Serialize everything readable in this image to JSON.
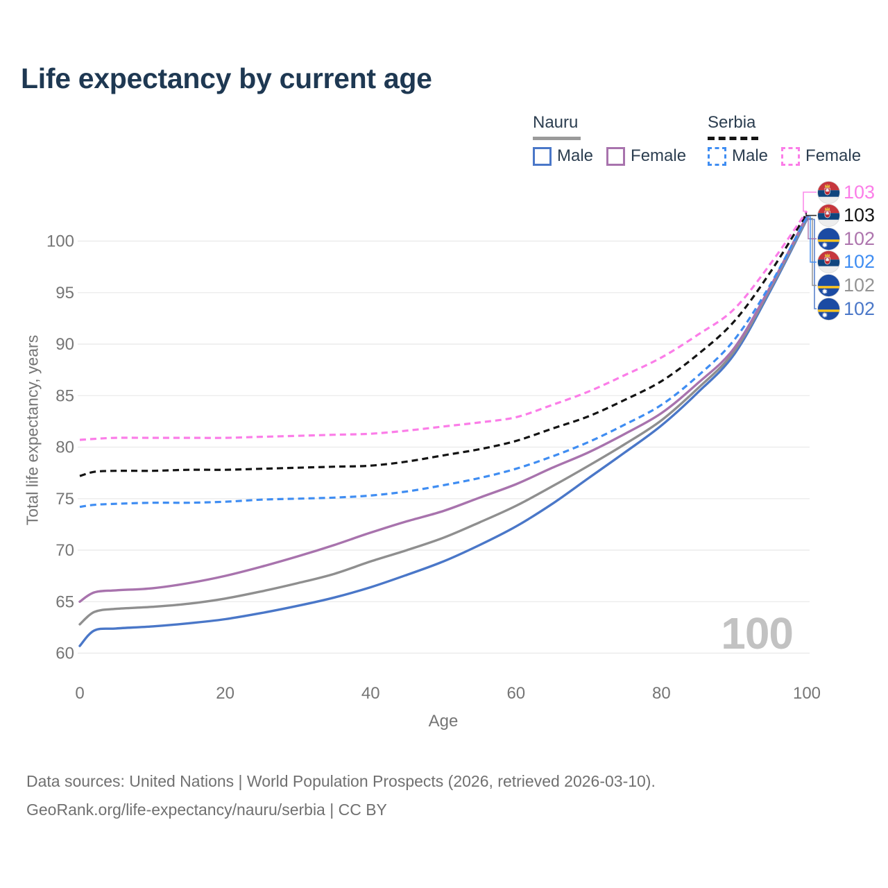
{
  "header": {
    "title": "Life expectancy by current age"
  },
  "legend": {
    "groups": [
      {
        "country": "Nauru",
        "line_style": "solid",
        "underline_color": "#9a9a9a",
        "items": [
          {
            "label": "Male",
            "color": "#4a77c8",
            "dashed": false
          },
          {
            "label": "Female",
            "color": "#a873ad",
            "dashed": false
          }
        ]
      },
      {
        "country": "Serbia",
        "line_style": "dashed",
        "underline_color": "#141414",
        "items": [
          {
            "label": "Male",
            "color": "#3f8df2",
            "dashed": true
          },
          {
            "label": "Female",
            "color": "#fb7de8",
            "dashed": true
          }
        ]
      }
    ]
  },
  "chart_data": {
    "type": "line",
    "title": "Life expectancy by current age",
    "xlabel": "Age",
    "ylabel": "Total life expectancy, years",
    "xlim": [
      0,
      100
    ],
    "ylim": [
      60,
      100
    ],
    "xticks": [
      0,
      20,
      40,
      60,
      80,
      100
    ],
    "yticks": [
      60,
      65,
      70,
      75,
      80,
      85,
      90,
      95,
      100
    ],
    "grid": "horizontal-only",
    "legend_position": "top-right",
    "age_indicator": "100",
    "x": [
      0,
      2,
      5,
      10,
      15,
      20,
      25,
      30,
      35,
      40,
      45,
      50,
      55,
      60,
      65,
      70,
      75,
      80,
      85,
      90,
      95,
      100
    ],
    "series": [
      {
        "name": "Nauru Male",
        "country": "Nauru",
        "sex": "male",
        "color": "#4a77c8",
        "dashed": false,
        "end_label_row": 5,
        "values": [
          60.7,
          62.2,
          62.4,
          62.6,
          62.9,
          63.3,
          63.9,
          64.6,
          65.4,
          66.4,
          67.6,
          68.9,
          70.5,
          72.3,
          74.5,
          77.0,
          79.5,
          82.1,
          85.3,
          89.0,
          95.2,
          102.1
        ]
      },
      {
        "name": "Nauru (both sexes)",
        "country": "Nauru",
        "sex": "both",
        "color": "#8f8f8f",
        "dashed": false,
        "end_label_row": 4,
        "values": [
          62.8,
          64.0,
          64.3,
          64.5,
          64.8,
          65.3,
          66.0,
          66.8,
          67.7,
          68.9,
          70.0,
          71.2,
          72.7,
          74.3,
          76.2,
          78.2,
          80.3,
          82.6,
          85.7,
          89.3,
          95.4,
          102.2
        ]
      },
      {
        "name": "Nauru Female",
        "country": "Nauru",
        "sex": "female",
        "color": "#a873ad",
        "dashed": false,
        "end_label_row": 2,
        "values": [
          65.0,
          65.9,
          66.1,
          66.3,
          66.8,
          67.5,
          68.4,
          69.4,
          70.5,
          71.7,
          72.8,
          73.8,
          75.1,
          76.4,
          78.0,
          79.5,
          81.3,
          83.3,
          86.2,
          89.6,
          95.6,
          102.45
        ]
      },
      {
        "name": "Serbia Male",
        "country": "Serbia",
        "sex": "male",
        "color": "#3f8df2",
        "dashed": true,
        "end_label_row": 3,
        "values": [
          74.2,
          74.4,
          74.5,
          74.6,
          74.6,
          74.7,
          74.9,
          75.0,
          75.1,
          75.3,
          75.7,
          76.3,
          77.0,
          77.9,
          79.1,
          80.5,
          82.2,
          84.1,
          86.9,
          90.4,
          95.8,
          102.35
        ]
      },
      {
        "name": "Serbia (both sexes)",
        "country": "Serbia",
        "sex": "both",
        "color": "#141414",
        "dashed": true,
        "end_label_row": 1,
        "values": [
          77.2,
          77.6,
          77.7,
          77.7,
          77.8,
          77.8,
          77.9,
          78.0,
          78.1,
          78.2,
          78.6,
          79.2,
          79.8,
          80.6,
          81.8,
          83.0,
          84.6,
          86.4,
          89.0,
          92.2,
          97.0,
          102.7
        ]
      },
      {
        "name": "Serbia Female",
        "country": "Serbia",
        "sex": "female",
        "color": "#fb7de8",
        "dashed": true,
        "end_label_row": 0,
        "values": [
          80.7,
          80.8,
          80.9,
          80.9,
          80.9,
          80.9,
          81.0,
          81.1,
          81.2,
          81.3,
          81.6,
          82.0,
          82.4,
          82.9,
          84.1,
          85.4,
          87.0,
          88.7,
          90.9,
          93.4,
          97.8,
          102.9
        ]
      }
    ],
    "end_labels": [
      {
        "country": "Serbia",
        "flag": "serbia-flag",
        "value": "103",
        "color": "#fb7de8"
      },
      {
        "country": "Serbia",
        "flag": "serbia-flag",
        "value": "103",
        "color": "#141414"
      },
      {
        "country": "Nauru",
        "flag": "nauru-flag",
        "value": "102",
        "color": "#ad74ad"
      },
      {
        "country": "Serbia",
        "flag": "serbia-flag",
        "value": "102",
        "color": "#3f8df2"
      },
      {
        "country": "Nauru",
        "flag": "nauru-flag",
        "value": "102",
        "color": "#949494"
      },
      {
        "country": "Nauru",
        "flag": "nauru-flag",
        "value": "102",
        "color": "#4a77c8"
      }
    ],
    "colors": {
      "grid": "#ececec",
      "ticks": "#757575",
      "title": "#1e3852",
      "watermark": "#c2c2c2"
    }
  },
  "footer": {
    "line1": "Data sources: United Nations | World Population Prospects (2026, retrieved 2026-03-10).",
    "line2": "GeoRank.org/life-expectancy/nauru/serbia | CC BY"
  }
}
